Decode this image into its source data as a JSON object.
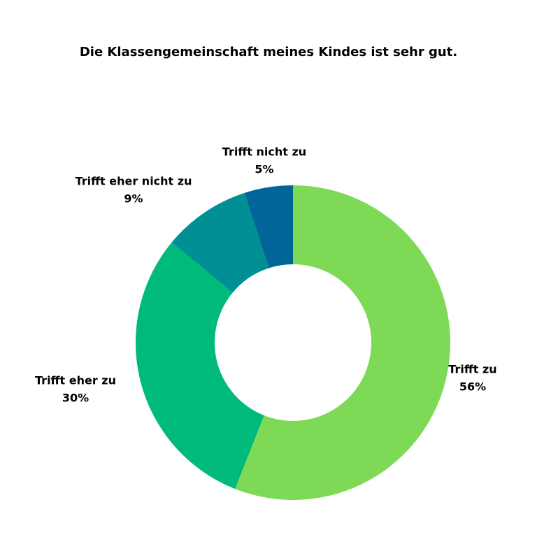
{
  "chart_data": {
    "type": "donut",
    "title": "Die Klassengemeinschaft meines Kindes ist sehr gut.",
    "categories": [
      "Trifft zu",
      "Trifft eher zu",
      "Trifft eher nicht zu",
      "Trifft nicht zu"
    ],
    "values": [
      56,
      30,
      9,
      5
    ],
    "value_labels": [
      "56%",
      "30%",
      "9%",
      "5%"
    ],
    "colors": [
      "#7ed957",
      "#00ba7c",
      "#008f94",
      "#006699"
    ]
  }
}
